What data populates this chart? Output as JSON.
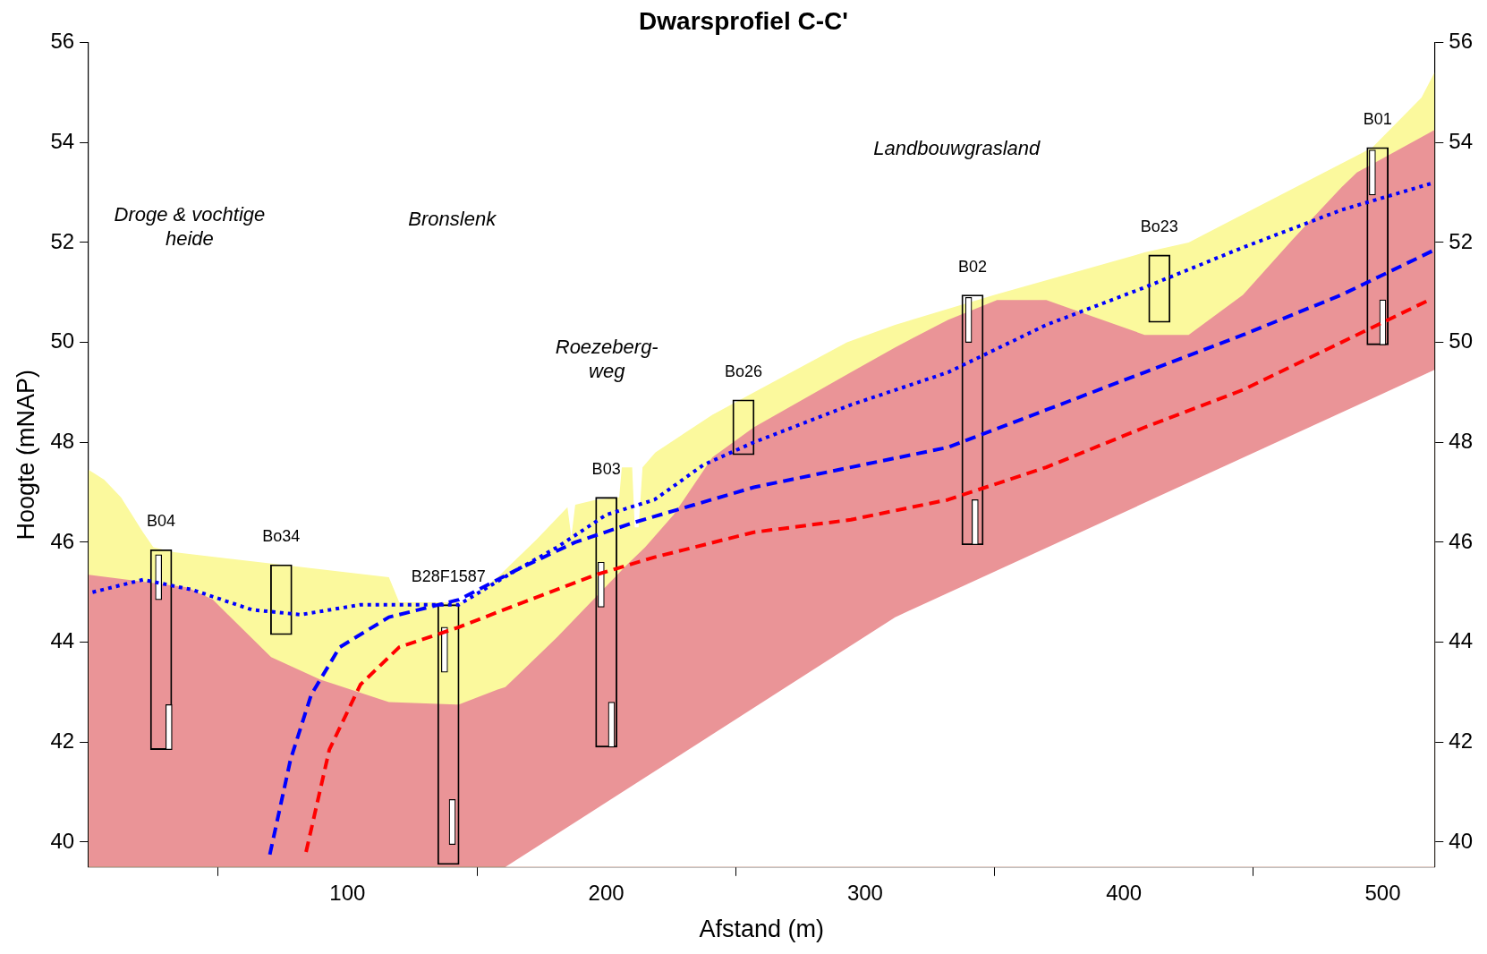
{
  "chart_data": {
    "type": "area",
    "title": "Dwarsprofiel C-C'",
    "xlabel": "Afstand (m)",
    "ylabel": "Hoogte (mNAP)",
    "xlim": [
      0,
      520
    ],
    "xticks": [
      100,
      200,
      300,
      400,
      500
    ],
    "ylim": [
      39.5,
      56
    ],
    "yticks": [
      40,
      42,
      44,
      46,
      48,
      50,
      52,
      54,
      56
    ],
    "y2lim": [
      39.5,
      56
    ],
    "y2ticks": [
      40,
      42,
      44,
      46,
      48,
      50,
      52,
      54,
      56
    ],
    "grid": false,
    "legend": false,
    "series": [
      {
        "color": "#fbf99d",
        "x": [
          0,
          6,
          12.5,
          21,
          25,
          33,
          116,
          120,
          145,
          158,
          173,
          185,
          186.5,
          188,
          196,
          205,
          206,
          210,
          211,
          212.5,
          214,
          219,
          241,
          257,
          293,
          311.6,
          350,
          408,
          425,
          496,
          515,
          520
        ],
        "values": [
          47.45,
          47.25,
          46.9,
          46.2,
          45.9,
          45.8,
          45.3,
          44.8,
          44.8,
          45.3,
          46.05,
          46.7,
          46.1,
          46.75,
          46.85,
          46.9,
          47.5,
          47.5,
          46.3,
          46.3,
          47.5,
          47.8,
          48.55,
          49.0,
          50.0,
          50.35,
          50.95,
          51.8,
          52.0,
          53.9,
          54.9,
          55.4
        ]
      },
      {
        "color": "#ea9497",
        "x": [
          0,
          38,
          48,
          70.5,
          89.6,
          116,
          143,
          158,
          161,
          181,
          208,
          215,
          226,
          241,
          257,
          294.5,
          311.6,
          332,
          351,
          370,
          389,
          408,
          425,
          446,
          465,
          484,
          490,
          520
        ],
        "values": [
          45.35,
          45.1,
          44.85,
          43.7,
          43.25,
          42.8,
          42.75,
          43.05,
          43.1,
          44.1,
          45.55,
          45.9,
          46.55,
          47.7,
          48.3,
          49.4,
          49.9,
          50.45,
          50.85,
          50.85,
          50.5,
          50.15,
          50.15,
          50.95,
          52.05,
          53.1,
          53.4,
          54.25
        ]
      },
      {
        "color": "#ffffff",
        "x": [
          161,
          311.6,
          520
        ],
        "values": [
          39.5,
          44.5,
          49.45
        ]
      },
      {
        "type": "line",
        "color": "#0000ff",
        "line_style": "dotted",
        "x": [
          1.5,
          21,
          40,
          63,
          82,
          105,
          120,
          143,
          165.5,
          181,
          200,
          218.6,
          237.6,
          257,
          294.5,
          332,
          370,
          408,
          446,
          484,
          520
        ],
        "values": [
          45.0,
          45.25,
          45.05,
          44.65,
          44.55,
          44.75,
          44.75,
          44.75,
          45.45,
          45.9,
          46.55,
          46.85,
          47.55,
          48.0,
          48.75,
          49.4,
          50.35,
          51.1,
          51.9,
          52.65,
          53.2
        ]
      },
      {
        "type": "line",
        "color": "#0000ff",
        "line_style": "dashed",
        "x": [
          70,
          78,
          86,
          97,
          116,
          143,
          165.5,
          188,
          211,
          234,
          257,
          294.5,
          332,
          370,
          408,
          446,
          484,
          520
        ],
        "values": [
          39.75,
          41.65,
          42.95,
          43.9,
          44.5,
          44.85,
          45.45,
          46.0,
          46.4,
          46.75,
          47.1,
          47.5,
          47.9,
          48.65,
          49.4,
          50.15,
          50.95,
          51.85
        ]
      },
      {
        "type": "line",
        "color": "#ff0000",
        "line_style": "dashed",
        "x": [
          84,
          93,
          105,
          120,
          143,
          165.5,
          196,
          218.6,
          257,
          294.5,
          332,
          370,
          408,
          446,
          484,
          518
        ],
        "values": [
          39.8,
          41.85,
          43.15,
          43.9,
          44.3,
          44.75,
          45.35,
          45.7,
          46.2,
          46.45,
          46.85,
          47.5,
          48.3,
          49.05,
          50.0,
          50.85
        ]
      },
      {
        "type": "bar",
        "color": "#000000",
        "x": [
          28,
          74.4,
          139,
          200,
          253,
          341.5,
          413.7,
          498
        ],
        "base": [
          41.85,
          44.15,
          39.55,
          41.9,
          47.75,
          45.95,
          50.4,
          49.95
        ],
        "values": [
          4.0,
          1.4,
          5.2,
          5.0,
          1.1,
          5.0,
          1.35,
          3.95
        ],
        "value_labels": [
          "B04",
          "Bo34",
          "B28F1587",
          "B03",
          "Bo26",
          "B02",
          "Bo23",
          "B01"
        ]
      },
      {
        "type": "bar",
        "color": "#ffffff",
        "x": [
          27,
          31,
          137.5,
          140.5,
          198,
          202,
          340,
          342.5,
          496,
          500
        ],
        "base": [
          44.85,
          41.85,
          43.4,
          39.95,
          44.7,
          41.9,
          50.0,
          45.95,
          52.95,
          49.95
        ],
        "values": [
          0.9,
          0.9,
          0.9,
          0.9,
          0.9,
          0.9,
          0.9,
          0.9,
          0.9,
          0.9
        ]
      }
    ],
    "annotations": [
      "Droge & vochtige\nheide",
      "Bronslenk",
      "Roezeberg-\nweg",
      "Landbouwgrasland"
    ]
  }
}
